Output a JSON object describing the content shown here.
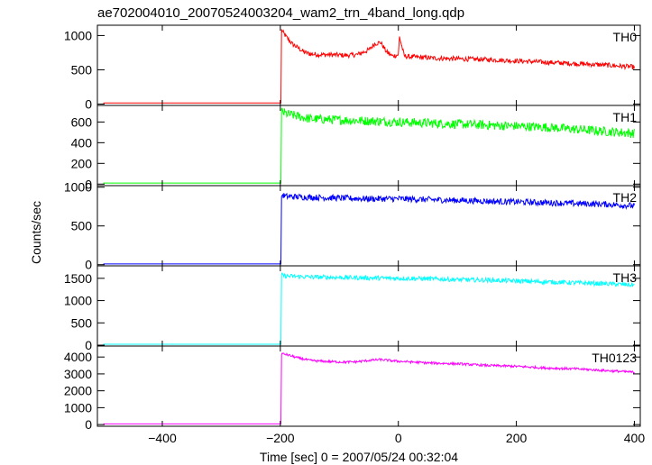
{
  "chart_data": [
    {
      "type": "line",
      "title": "ae702004010_20070524003204_wam2_trn_4band_long.qdp",
      "xlabel": "Time [sec] 0 = 2007/05/24 00:32:04",
      "ylabel": "Counts/sec",
      "xlim": [
        -510,
        410
      ],
      "xticks": [
        -400,
        -200,
        0,
        200,
        400
      ],
      "xtick_labels": [
        "−400",
        "−200",
        "0",
        "200",
        "400"
      ],
      "grid": false,
      "panels": [
        {
          "name": "TH0",
          "color": "#ff0000",
          "ylim": [
            -20,
            1150
          ],
          "yticks": [
            0,
            500,
            1000
          ],
          "ytick_labels": [
            "0",
            "500",
            "1000"
          ],
          "x": [
            -500,
            -199,
            -198,
            -195,
            -190,
            -180,
            -170,
            -160,
            -150,
            -130,
            -110,
            -90,
            -70,
            -50,
            -40,
            -30,
            -20,
            -10,
            0,
            2,
            10,
            20,
            40,
            60,
            80,
            100,
            150,
            200,
            250,
            300,
            350,
            400
          ],
          "y": [
            15,
            15,
            1080,
            1040,
            980,
            880,
            820,
            760,
            730,
            720,
            720,
            710,
            720,
            790,
            880,
            900,
            760,
            700,
            720,
            980,
            700,
            690,
            680,
            670,
            665,
            660,
            650,
            630,
            610,
            590,
            570,
            540
          ],
          "noise": 35
        },
        {
          "name": "TH1",
          "color": "#00ff00",
          "ylim": [
            -15,
            760
          ],
          "yticks": [
            0,
            200,
            400,
            600
          ],
          "ytick_labels": [
            "0",
            "200",
            "400",
            "600"
          ],
          "x": [
            -500,
            -199,
            -198,
            -190,
            -150,
            -100,
            -50,
            0,
            50,
            100,
            150,
            200,
            250,
            300,
            350,
            400
          ],
          "y": [
            10,
            10,
            700,
            680,
            630,
            620,
            610,
            600,
            590,
            580,
            570,
            560,
            550,
            530,
            510,
            490
          ],
          "noise": 45
        },
        {
          "name": "TH2",
          "color": "#0000ff",
          "ylim": [
            -15,
            1020
          ],
          "yticks": [
            0,
            500,
            1000
          ],
          "ytick_labels": [
            "0",
            "500",
            "1000"
          ],
          "x": [
            -500,
            -199,
            -198,
            -190,
            -150,
            -100,
            -50,
            0,
            50,
            100,
            150,
            200,
            250,
            300,
            350,
            400
          ],
          "y": [
            10,
            10,
            900,
            880,
            870,
            860,
            850,
            850,
            840,
            830,
            820,
            810,
            800,
            790,
            780,
            760
          ],
          "noise": 40
        },
        {
          "name": "TH3",
          "color": "#00ffff",
          "ylim": [
            -20,
            1780
          ],
          "yticks": [
            0,
            500,
            1000,
            1500
          ],
          "ytick_labels": [
            "0",
            "500",
            "1000",
            "1500"
          ],
          "x": [
            -500,
            -199,
            -198,
            -190,
            -150,
            -100,
            -50,
            0,
            50,
            100,
            150,
            200,
            250,
            300,
            350,
            400
          ],
          "y": [
            20,
            20,
            1570,
            1550,
            1530,
            1520,
            1510,
            1500,
            1490,
            1470,
            1460,
            1440,
            1420,
            1400,
            1380,
            1350
          ],
          "noise": 50
        },
        {
          "name": "TH0123",
          "color": "#ff00ff",
          "ylim": [
            -100,
            4650
          ],
          "yticks": [
            0,
            1000,
            2000,
            3000,
            4000
          ],
          "ytick_labels": [
            "0",
            "1000",
            "2000",
            "3000",
            "4000"
          ],
          "x": [
            -500,
            -199,
            -198,
            -190,
            -170,
            -150,
            -130,
            -110,
            -90,
            -70,
            -50,
            -30,
            -10,
            0,
            50,
            100,
            150,
            200,
            250,
            300,
            350,
            400
          ],
          "y": [
            40,
            40,
            4200,
            4150,
            3950,
            3800,
            3750,
            3720,
            3700,
            3720,
            3800,
            3850,
            3780,
            3750,
            3650,
            3600,
            3500,
            3450,
            3350,
            3300,
            3200,
            3100
          ],
          "noise": 70
        }
      ]
    }
  ]
}
